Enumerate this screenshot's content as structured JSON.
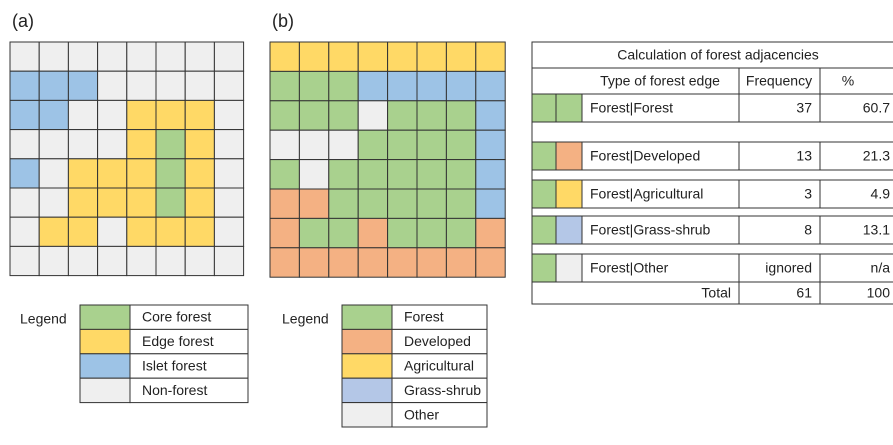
{
  "panel_a": {
    "label": "(a)",
    "legend": {
      "title": "Legend",
      "items": [
        "Core forest",
        "Edge forest",
        "Islet forest",
        "Non-forest"
      ]
    }
  },
  "panel_b": {
    "label": "(b)",
    "legend": {
      "title": "Legend",
      "items": [
        "Forest",
        "Developed",
        "Agricultural",
        "Grass-shrub",
        "Other"
      ]
    }
  },
  "table": {
    "title": "Calculation of forest adjacencies",
    "header": [
      "Type of forest edge",
      "Frequency",
      "%"
    ],
    "rows": [
      [
        "Forest|Forest",
        37,
        60.7
      ],
      [
        "Forest|Developed",
        13,
        21.3
      ],
      [
        "Forest|Agricultural",
        3,
        4.9
      ],
      [
        "Forest|Grass-shrub",
        8,
        13.1
      ],
      [
        "Forest|Other",
        "ignored",
        "n/a"
      ]
    ],
    "total": [
      "Total",
      61,
      100
    ]
  }
}
